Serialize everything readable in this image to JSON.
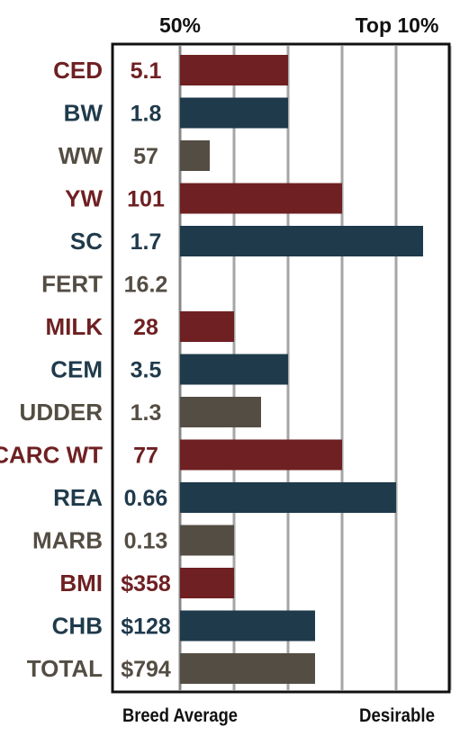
{
  "chart_data": {
    "type": "bar",
    "orientation": "horizontal",
    "title": "",
    "top_labels": [
      "50%",
      "Top 10%"
    ],
    "bottom_labels": [
      "Breed Average",
      "Desirable"
    ],
    "xlim": [
      0,
      5
    ],
    "grid": true,
    "palette": [
      "#6f2022",
      "#1f3a4b",
      "#544d43"
    ],
    "rows": [
      {
        "trait": "CED",
        "value_label": "5.1",
        "bar": 2.0
      },
      {
        "trait": "BW",
        "value_label": "1.8",
        "bar": 2.0
      },
      {
        "trait": "WW",
        "value_label": "57",
        "bar": 0.55
      },
      {
        "trait": "YW",
        "value_label": "101",
        "bar": 3.0
      },
      {
        "trait": "SC",
        "value_label": "1.7",
        "bar": 4.5
      },
      {
        "trait": "FERT",
        "value_label": "16.2",
        "bar": 0
      },
      {
        "trait": "MILK",
        "value_label": "28",
        "bar": 1.0
      },
      {
        "trait": "CEM",
        "value_label": "3.5",
        "bar": 2.0
      },
      {
        "trait": "UDDER",
        "value_label": "1.3",
        "bar": 1.5
      },
      {
        "trait": "CARC WT",
        "value_label": "77",
        "bar": 3.0
      },
      {
        "trait": "REA",
        "value_label": "0.66",
        "bar": 4.0
      },
      {
        "trait": "MARB",
        "value_label": "0.13",
        "bar": 1.0
      },
      {
        "trait": "BMI",
        "value_label": "$358",
        "bar": 1.0
      },
      {
        "trait": "CHB",
        "value_label": "$128",
        "bar": 2.5
      },
      {
        "trait": "TOTAL",
        "value_label": "$794",
        "bar": 2.5
      }
    ]
  }
}
